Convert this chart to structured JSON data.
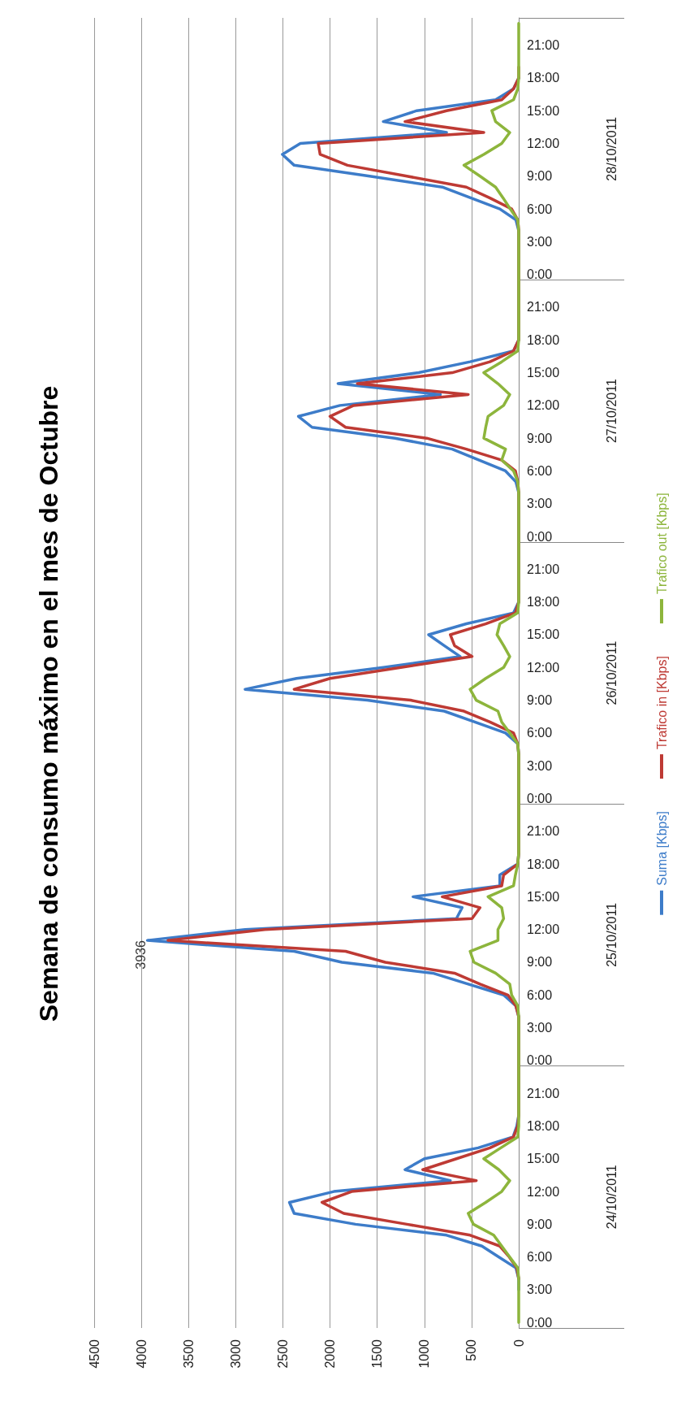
{
  "chart_data": {
    "type": "line",
    "orientation": "horizontal",
    "title": "Semana de consumo máximo en el mes de Octubre",
    "categories": [
      null,
      null,
      "21:00",
      null,
      null,
      "18:00",
      null,
      null,
      "15:00",
      null,
      null,
      "12:00",
      null,
      null,
      "9:00",
      null,
      null,
      "6:00",
      null,
      null,
      "3:00",
      null,
      null,
      "0:00",
      null,
      null,
      "21:00",
      null,
      null,
      "18:00",
      null,
      null,
      "15:00",
      null,
      null,
      "12:00",
      null,
      null,
      "9:00",
      null,
      null,
      "6:00",
      null,
      null,
      "3:00",
      null,
      null,
      "0:00",
      null,
      null,
      "21:00",
      null,
      null,
      "18:00",
      null,
      null,
      "15:00",
      null,
      null,
      "12:00",
      null,
      null,
      "9:00",
      null,
      null,
      "6:00",
      null,
      null,
      "3:00",
      null,
      null,
      "0:00",
      null,
      null,
      "21:00",
      null,
      null,
      "18:00",
      null,
      null,
      "15:00",
      null,
      null,
      "12:00",
      null,
      null,
      "9:00",
      null,
      null,
      "6:00",
      null,
      null,
      "3:00",
      null,
      null,
      "0:00",
      null,
      null,
      "21:00",
      null,
      null,
      "18:00",
      null,
      null,
      "15:00",
      null,
      null,
      "12:00",
      null,
      null,
      "9:00",
      null,
      null,
      "6:00",
      null,
      null,
      "3:00",
      null,
      null,
      "0:00"
    ],
    "annotations": [
      "28/10/2011",
      "27/10/2011",
      "26/10/2011",
      "25/10/2011",
      "24/10/2011"
    ],
    "series": [
      {
        "name": "Suma [Kbps]",
        "color": "#3d7cc9",
        "values": [
          null,
          null,
          null,
          null,
          null,
          0,
          55,
          245,
          1080,
          1435,
          765,
          2315,
          2505,
          2380,
          1580,
          810,
          505,
          200,
          30,
          0,
          0,
          0,
          0,
          0,
          0,
          0,
          0,
          0,
          0,
          0,
          55,
          515,
          1060,
          1915,
          830,
          1895,
          2335,
          2190,
          1310,
          705,
          420,
          140,
          30,
          0,
          0,
          0,
          0,
          0,
          0,
          0,
          0,
          0,
          0,
          0,
          55,
          555,
          955,
          790,
          620,
          1435,
          2355,
          2900,
          1605,
          790,
          465,
          140,
          10,
          0,
          0,
          0,
          0,
          0,
          0,
          0,
          0,
          0,
          0,
          10,
          200,
          200,
          1120,
          600,
          660,
          2900,
          3936,
          2380,
          1875,
          910,
          535,
          160,
          30,
          0,
          0,
          0,
          0,
          0,
          0,
          0,
          0,
          0,
          0,
          20,
          60,
          430,
          1000,
          1205,
          725,
          1960,
          2430,
          2380,
          1730,
          765,
          390,
          210,
          30,
          0,
          0,
          null,
          null,
          null
        ],
        "value_labels": [
          null,
          null,
          null,
          null,
          null,
          null,
          null,
          null,
          null,
          null,
          null,
          null,
          null,
          null,
          null,
          null,
          null,
          null,
          null,
          null,
          null,
          null,
          null,
          null,
          null,
          null,
          null,
          null,
          null,
          null,
          null,
          null,
          null,
          null,
          null,
          null,
          null,
          null,
          null,
          null,
          null,
          null,
          null,
          null,
          null,
          null,
          null,
          null,
          null,
          null,
          null,
          null,
          null,
          null,
          null,
          null,
          null,
          null,
          null,
          null,
          null,
          null,
          null,
          null,
          null,
          null,
          null,
          null,
          null,
          null,
          null,
          null,
          null,
          null,
          null,
          null,
          null,
          null,
          null,
          null,
          null,
          null,
          null,
          null,
          "3936",
          null,
          null,
          null,
          null,
          null,
          null,
          null,
          null,
          null,
          null,
          null,
          null,
          null,
          null,
          null,
          null,
          null,
          null,
          null,
          null,
          null,
          null,
          null,
          null,
          null,
          null,
          null,
          null,
          null,
          null,
          null,
          null,
          null,
          null,
          null
        ]
      },
      {
        "name": "Trafico in [Kbps]",
        "color": "#be3a34",
        "values": [
          null,
          null,
          null,
          null,
          0,
          0,
          55,
          180,
          765,
          1205,
          370,
          2125,
          2105,
          1815,
          1185,
          555,
          305,
          75,
          10,
          0,
          0,
          0,
          0,
          0,
          0,
          0,
          0,
          0,
          0,
          0,
          55,
          305,
          705,
          1710,
          535,
          1750,
          2000,
          1835,
          975,
          555,
          180,
          35,
          10,
          0,
          0,
          0,
          0,
          0,
          0,
          0,
          0,
          0,
          0,
          0,
          35,
          350,
          725,
          680,
          495,
          1250,
          2000,
          2380,
          1145,
          580,
          305,
          55,
          10,
          0,
          0,
          0,
          0,
          0,
          0,
          0,
          0,
          0,
          0,
          10,
          160,
          180,
          810,
          410,
          495,
          2690,
          3718,
          1835,
          1415,
          680,
          410,
          115,
          30,
          0,
          0,
          0,
          0,
          0,
          0,
          0,
          0,
          0,
          0,
          10,
          55,
          305,
          660,
          1017,
          450,
          1770,
          2085,
          1855,
          1185,
          515,
          200,
          100,
          20,
          0,
          null,
          null,
          null,
          null
        ]
      },
      {
        "name": "Trafico out [Kbps]",
        "color": "#8db53c",
        "values": [
          0,
          0,
          0,
          0,
          0,
          0,
          10,
          55,
          285,
          245,
          95,
          180,
          370,
          580,
          410,
          245,
          165,
          90,
          10,
          0,
          0,
          0,
          0,
          0,
          0,
          0,
          0,
          0,
          0,
          0,
          10,
          180,
          370,
          220,
          95,
          160,
          325,
          350,
          370,
          140,
          180,
          55,
          10,
          0,
          0,
          0,
          0,
          0,
          0,
          0,
          0,
          0,
          0,
          0,
          10,
          200,
          230,
          160,
          95,
          160,
          350,
          515,
          450,
          220,
          180,
          95,
          10,
          0,
          0,
          0,
          0,
          0,
          0,
          0,
          0,
          0,
          0,
          10,
          35,
          55,
          325,
          180,
          160,
          220,
          220,
          515,
          475,
          245,
          95,
          75,
          10,
          0,
          0,
          0,
          0,
          0,
          0,
          0,
          0,
          0,
          0,
          0,
          10,
          190,
          370,
          210,
          95,
          180,
          350,
          535,
          480,
          265,
          180,
          95,
          10,
          0,
          0,
          0,
          0,
          0
        ]
      }
    ],
    "xlim": [
      4500,
      0
    ],
    "xticks": [
      4500,
      4000,
      3500,
      3000,
      2500,
      2000,
      1500,
      1000,
      500,
      0
    ],
    "grid": "x",
    "legend": "right",
    "marker": "none",
    "line_style": "solid"
  }
}
